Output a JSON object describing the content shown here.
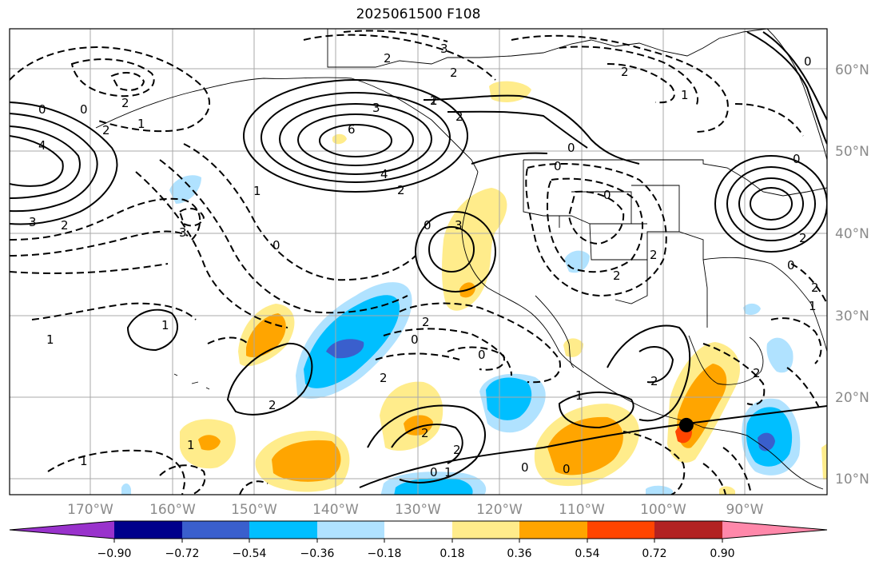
{
  "title": "2025061500 F108",
  "map": {
    "lat_labels": [
      "60°N",
      "50°N",
      "40°N",
      "30°N",
      "20°N",
      "10°N"
    ],
    "lon_labels": [
      "170°W",
      "160°W",
      "150°W",
      "140°W",
      "130°W",
      "120°W",
      "110°W",
      "100°W",
      "90°W"
    ],
    "marker": {
      "lon": -97.2,
      "lat": 16.6,
      "color": "#000000"
    }
  },
  "colorbar": {
    "colors": [
      "#9932cc",
      "#00008b",
      "#3a5fcd",
      "#00bfff",
      "#b0e2ff",
      "#ffffff",
      "#ffec8b",
      "#ffa500",
      "#ff4500",
      "#b22222",
      "#ff88aa"
    ],
    "tick_labels": [
      "−0.90",
      "−0.72",
      "−0.54",
      "−0.36",
      "−0.18",
      "0.18",
      "0.36",
      "0.54",
      "0.72",
      "0.90"
    ]
  },
  "contour_labels": [
    "0",
    "4",
    "3",
    "2",
    "2",
    "1",
    "0",
    "2",
    "1",
    "3",
    "3",
    "2",
    "2",
    "2",
    "1",
    "6",
    "3",
    "4",
    "2",
    "2",
    "0",
    "0",
    "2",
    "1",
    "0",
    "3",
    "0",
    "2",
    "2",
    "0",
    "1",
    "1",
    "2",
    "0",
    "0",
    "2",
    "2",
    "1",
    "1",
    "2",
    "2",
    "0",
    "1",
    "0",
    "0",
    "1",
    "2",
    "2",
    "0",
    "2",
    "0",
    "2",
    "1",
    "0"
  ]
}
